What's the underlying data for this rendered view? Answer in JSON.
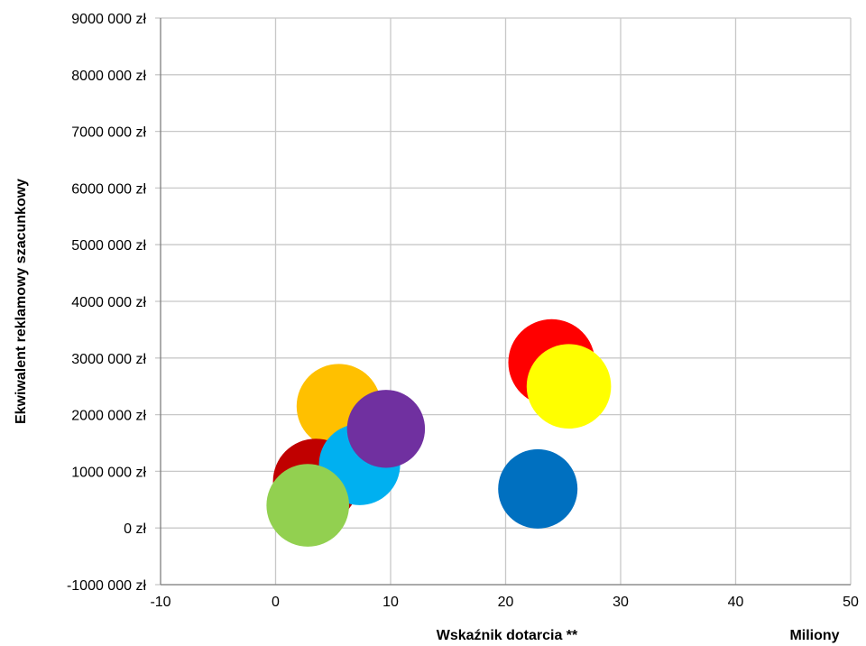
{
  "chart_data": {
    "type": "bubble",
    "xlabel": "Wskaźnik dotarcia **",
    "x_units_label": "Miliony",
    "ylabel": "Ekwiwalent reklamowy szacunkowy",
    "xlim": [
      -10,
      50
    ],
    "ylim": [
      -1000000,
      9000000
    ],
    "x_ticks": [
      "-10",
      "0",
      "10",
      "20",
      "30",
      "40",
      "50"
    ],
    "y_ticks": [
      "-1000 000 zł",
      "0 zł",
      "1000 000 zł",
      "2000 000 zł",
      "3000 000 zł",
      "4000 000 zł",
      "5000 000 zł",
      "6000 000 zł",
      "7000 000 zł",
      "8000 000 zł",
      "9000 000 zł"
    ],
    "grid": true,
    "legend": "none",
    "points": [
      {
        "x": 24.0,
        "y": 2920000,
        "size": 1.0,
        "color": "#ff0000"
      },
      {
        "x": 25.5,
        "y": 2500000,
        "size": 0.95,
        "color": "#ffff00"
      },
      {
        "x": 22.8,
        "y": 690000,
        "size": 0.84,
        "color": "#0070c0"
      },
      {
        "x": 5.5,
        "y": 2150000,
        "size": 0.95,
        "color": "#ffc000"
      },
      {
        "x": 3.5,
        "y": 820000,
        "size": 0.98,
        "color": "#c00000"
      },
      {
        "x": 7.3,
        "y": 1120000,
        "size": 0.88,
        "color": "#00b0f0"
      },
      {
        "x": 9.6,
        "y": 1750000,
        "size": 0.81,
        "color": "#7030a0"
      },
      {
        "x": 2.8,
        "y": 400000,
        "size": 0.91,
        "color": "#92d050"
      }
    ]
  }
}
